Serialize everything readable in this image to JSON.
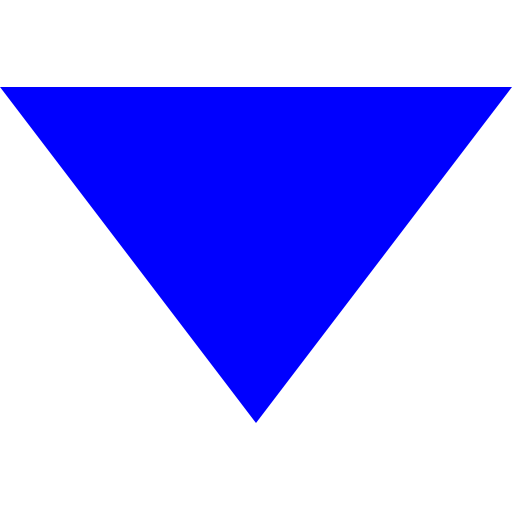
{
  "icon": {
    "name": "triangle-down-icon",
    "color": "#0000ff"
  },
  "background_color": "#ffffff"
}
